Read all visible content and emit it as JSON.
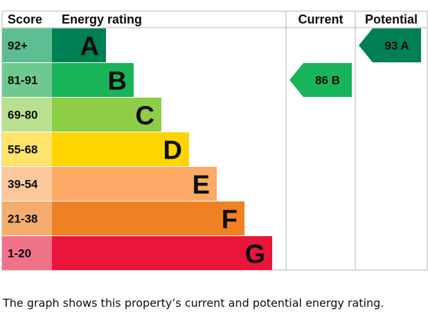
{
  "chart_data": {
    "type": "bar",
    "headers": {
      "score": "Score",
      "rating": "Energy rating",
      "current": "Current",
      "potential": "Potential"
    },
    "bands": [
      {
        "score": "92+",
        "letter": "A",
        "color": "#008054",
        "score_bg": "#5dbf91"
      },
      {
        "score": "81-91",
        "letter": "B",
        "color": "#19b459",
        "score_bg": "#6fc98f"
      },
      {
        "score": "69-80",
        "letter": "C",
        "color": "#8dce46",
        "score_bg": "#b9e08f"
      },
      {
        "score": "55-68",
        "letter": "D",
        "color": "#ffd500",
        "score_bg": "#ffe36b"
      },
      {
        "score": "39-54",
        "letter": "E",
        "color": "#fcaa65",
        "score_bg": "#fdc89b"
      },
      {
        "score": "21-38",
        "letter": "F",
        "color": "#ef8023",
        "score_bg": "#f4ad6f"
      },
      {
        "score": "1-20",
        "letter": "G",
        "color": "#e9153b",
        "score_bg": "#f07289"
      }
    ],
    "current": {
      "value": 86,
      "band": "B",
      "label": "86 B",
      "color": "#19b459"
    },
    "potential": {
      "value": 93,
      "band": "A",
      "label": "93 A",
      "color": "#008054"
    }
  },
  "caption": "The graph shows this property’s current and potential energy rating."
}
